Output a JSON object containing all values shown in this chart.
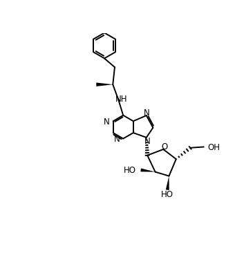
{
  "background_color": "#ffffff",
  "line_color": "#000000",
  "text_color": "#000000",
  "line_width": 1.4,
  "font_size": 8.5,
  "xlim": [
    0,
    10
  ],
  "ylim": [
    0,
    11.5
  ]
}
